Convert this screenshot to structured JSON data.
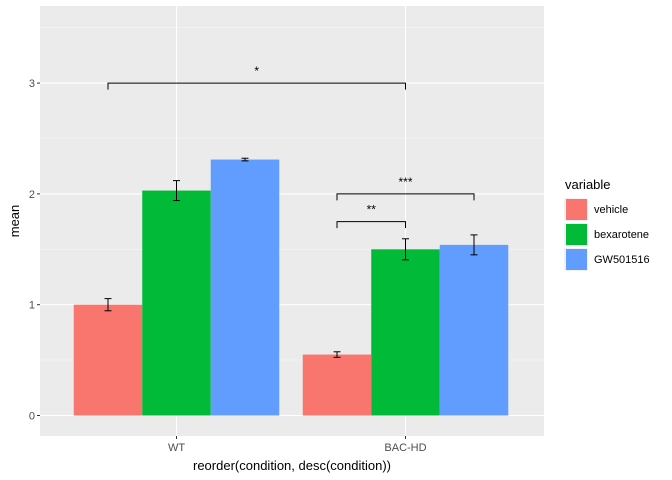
{
  "chart_data": {
    "type": "bar",
    "xlabel": "reorder(condition, desc(condition))",
    "ylabel": "mean",
    "categories": [
      "WT",
      "BAC-HD"
    ],
    "ylim": [
      0,
      3.6
    ],
    "yticks": [
      0,
      1,
      2,
      3
    ],
    "grid": true,
    "legend": {
      "title": "variable",
      "placement": "right"
    },
    "series": [
      {
        "name": "vehicle",
        "color": "#F8766D",
        "values": [
          1.0,
          0.55
        ],
        "errors": [
          0.055,
          0.025
        ]
      },
      {
        "name": "bexarotene",
        "color": "#00BA38",
        "values": [
          2.03,
          1.5
        ],
        "errors": [
          0.09,
          0.095
        ]
      },
      {
        "name": "GW501516",
        "color": "#619CFF",
        "values": [
          2.31,
          1.54
        ],
        "errors": [
          0.012,
          0.09
        ]
      }
    ],
    "significance": [
      {
        "label": "*",
        "from": [
          0,
          0
        ],
        "to": [
          1,
          1
        ],
        "y": 3.0
      },
      {
        "label": "***",
        "from": [
          1,
          0
        ],
        "to": [
          1,
          2
        ],
        "y": 2.0
      },
      {
        "label": "**",
        "from": [
          1,
          0
        ],
        "to": [
          1,
          1
        ],
        "y": 1.75
      }
    ]
  }
}
